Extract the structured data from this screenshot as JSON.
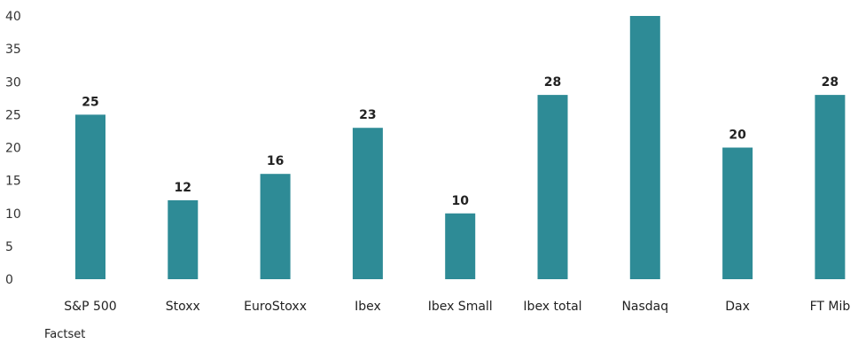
{
  "chart_data": {
    "type": "bar",
    "categories": [
      "S&P 500",
      "Stoxx",
      "EuroStoxx",
      "Ibex",
      "Ibex Small",
      "Ibex total",
      "Nasdaq",
      "Dax",
      "FT Mib"
    ],
    "values": [
      25,
      12,
      16,
      23,
      10,
      28,
      40,
      20,
      28
    ],
    "data_labels": [
      "25",
      "12",
      "16",
      "23",
      "10",
      "28",
      "",
      "20",
      "28"
    ],
    "ylim": [
      0,
      40
    ],
    "yticks": [
      0,
      5,
      10,
      15,
      20,
      25,
      30,
      35,
      40
    ],
    "grid": false,
    "bar_color": "#2e8b96"
  },
  "source": "Factset"
}
